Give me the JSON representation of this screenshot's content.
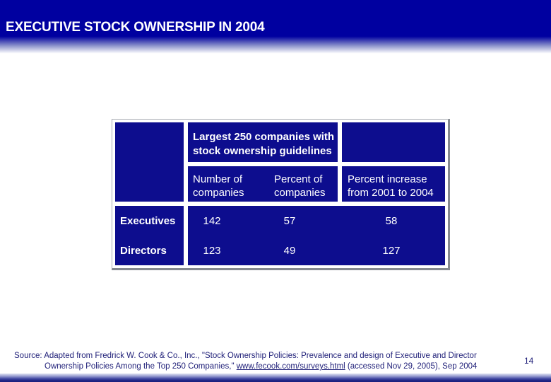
{
  "slide": {
    "title": "EXECUTIVE STOCK OWNERSHIP IN 2004",
    "page_number": "14"
  },
  "table": {
    "span_header_lines": [
      "Largest 250 companies with",
      "stock ownership guidelines"
    ],
    "col_number_of": [
      "Number of",
      "companies"
    ],
    "col_percent_of": [
      "Percent of",
      "companies"
    ],
    "col_percent_increase": [
      "Percent increase",
      "from 2001 to 2004"
    ],
    "rows": [
      {
        "label": "Executives",
        "values": [
          "142",
          "57",
          "58"
        ]
      },
      {
        "label": "Directors",
        "values": [
          "123",
          "49",
          "127"
        ]
      }
    ]
  },
  "footer": {
    "line1": "Source: Adapted from Fredrick W. Cook & Co., Inc., \"Stock Ownership Policies: Prevalence and design of Executive and Director",
    "line2_pre": "Ownership Policies Among the Top 250 Companies,\" ",
    "link_text": "www.fecook.com/surveys.html",
    "line2_post": " (accessed Nov 29, 2005), Sep 2004"
  },
  "colors": {
    "header_blue": "#0000A0",
    "table_cell_blue": "#0D0D8E",
    "table_text": "#FFFFFF",
    "footer_text": "#22227A",
    "table_shadow_gray": "#84888F"
  }
}
